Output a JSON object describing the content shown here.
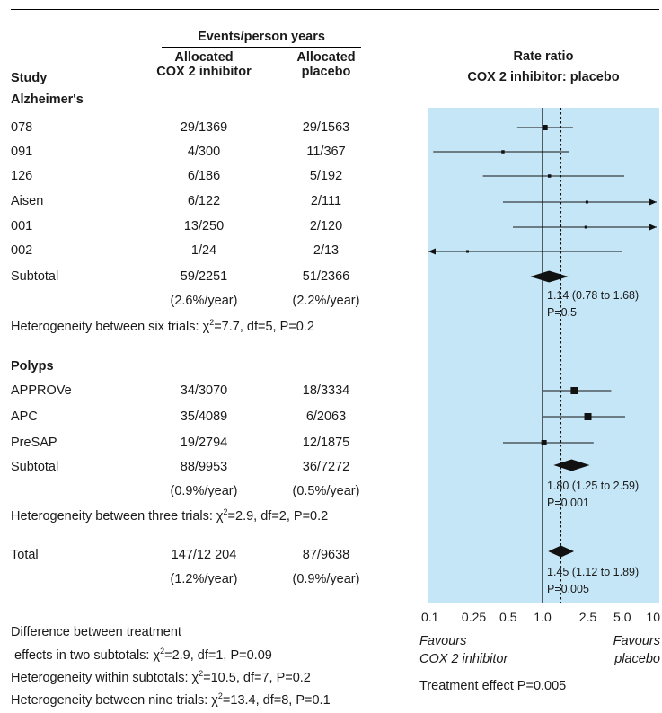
{
  "header": {
    "group_title": "Events/person years",
    "study_col": "Study",
    "col_cox_line1": "Allocated",
    "col_cox_line2": "COX 2 inhibitor",
    "col_placebo_line1": "Allocated",
    "col_placebo_line2": "placebo",
    "plot_title_line1": "Rate ratio",
    "plot_title_line2": "COX 2 inhibitor: placebo"
  },
  "sections": [
    {
      "name": "Alzheimer's",
      "studies": [
        {
          "study": "078",
          "cox": "29/1369",
          "placebo": "29/1563"
        },
        {
          "study": "091",
          "cox": "4/300",
          "placebo": "11/367"
        },
        {
          "study": "126",
          "cox": "6/186",
          "placebo": "5/192"
        },
        {
          "study": "Aisen",
          "cox": "6/122",
          "placebo": "2/111"
        },
        {
          "study": "001",
          "cox": "13/250",
          "placebo": "2/120"
        },
        {
          "study": "002",
          "cox": "1/24",
          "placebo": "2/13"
        }
      ],
      "subtotal": {
        "label": "Subtotal",
        "cox": "59/2251",
        "placebo": "51/2366",
        "cox_rate": "(2.6%/year)",
        "placebo_rate": "(2.2%/year)",
        "estimate": "1.14 (0.78 to 1.68)",
        "p": "P=0.5"
      },
      "heterogeneity": "Heterogeneity between six trials: χ",
      "heterogeneity_tail": "=7.7, df=5, P=0.2"
    },
    {
      "name": "Polyps",
      "studies": [
        {
          "study": "APPROVe",
          "cox": "34/3070",
          "placebo": "18/3334"
        },
        {
          "study": "APC",
          "cox": "35/4089",
          "placebo": "6/2063"
        },
        {
          "study": "PreSAP",
          "cox": "19/2794",
          "placebo": "12/1875"
        }
      ],
      "subtotal": {
        "label": "Subtotal",
        "cox": "88/9953",
        "placebo": "36/7272",
        "cox_rate": "(0.9%/year)",
        "placebo_rate": "(0.5%/year)",
        "estimate": "1.80 (1.25 to 2.59)",
        "p": "P=0.001"
      },
      "heterogeneity": "Heterogeneity between three trials: χ",
      "heterogeneity_tail": "=2.9, df=2, P=0.2"
    }
  ],
  "total": {
    "label": "Total",
    "cox": "147/12 204",
    "placebo": "87/9638",
    "cox_rate": "(1.2%/year)",
    "placebo_rate": "(0.9%/year)",
    "estimate": "1.45 (1.12 to 1.89)",
    "p": "P=0.005"
  },
  "footnotes": {
    "diff_line1": "Difference between treatment",
    "diff_line2_pre": "effects in two subtotals: χ",
    "diff_line2_post": "=2.9, df=1, P=0.09",
    "within_pre": "Heterogeneity within subtotals: χ",
    "within_post": "=10.5, df=7, P=0.2",
    "nine_pre": "Heterogeneity between nine trials: χ",
    "nine_post": "=13.4, df=8, P=0.1",
    "sup": "2"
  },
  "favours": {
    "left_line1": "Favours",
    "left_line2": "COX 2 inhibitor",
    "right_line1": "Favours",
    "right_line2": "placebo"
  },
  "treatment_effect": "Treatment effect P=0.005",
  "colors": {
    "panel": "#c5e6f6",
    "marks": "#111111"
  },
  "chart_data": {
    "type": "forest",
    "x_scale": "log",
    "xlim": [
      0.1,
      10
    ],
    "x_ticks": [
      0.1,
      0.25,
      0.5,
      1.0,
      2.5,
      5.0,
      10
    ],
    "x_tick_labels": [
      "0.1",
      "0.25",
      "0.5",
      "1.0",
      "2.5",
      "5.0",
      "10"
    ],
    "null_line": 1.0,
    "overall_line": 1.45,
    "studies": [
      {
        "study": "078",
        "rr": 1.05,
        "lo": 0.6,
        "hi": 1.85
      },
      {
        "study": "091",
        "rr": 0.45,
        "lo": 0.11,
        "hi": 1.7
      },
      {
        "study": "126",
        "rr": 1.15,
        "lo": 0.3,
        "hi": 5.2
      },
      {
        "study": "Aisen",
        "rr": 2.45,
        "lo": 0.45,
        "hi": 10,
        "arrow_right": true
      },
      {
        "study": "001",
        "rr": 2.4,
        "lo": 0.55,
        "hi": 10,
        "arrow_right": true
      },
      {
        "study": "002",
        "rr": 0.22,
        "lo": 0.1,
        "hi": 5.0,
        "arrow_left": true
      },
      {
        "study": "APPROVe",
        "rr": 1.9,
        "lo": 1.0,
        "hi": 4.0
      },
      {
        "study": "APC",
        "rr": 2.5,
        "lo": 1.0,
        "hi": 5.3
      },
      {
        "study": "PreSAP",
        "rr": 1.03,
        "lo": 0.45,
        "hi": 2.8
      }
    ],
    "diamonds": [
      {
        "label": "Alzheimer's subtotal",
        "rr": 1.14,
        "lo": 0.78,
        "hi": 1.68
      },
      {
        "label": "Polyps subtotal",
        "rr": 1.8,
        "lo": 1.25,
        "hi": 2.59
      },
      {
        "label": "Total",
        "rr": 1.45,
        "lo": 1.12,
        "hi": 1.89
      }
    ]
  }
}
